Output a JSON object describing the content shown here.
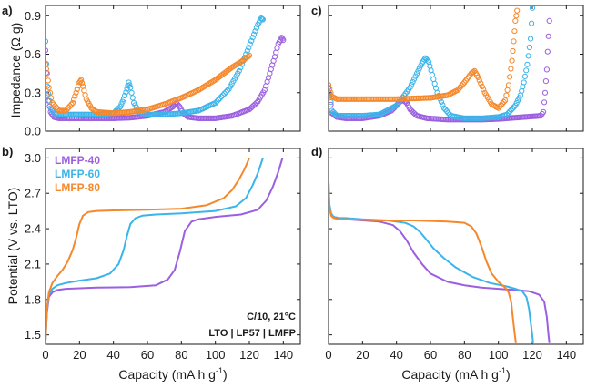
{
  "colors": {
    "purple": "#9b5fe0",
    "blue": "#3bb4ea",
    "orange": "#f5882a",
    "frame": "#1a1a1a",
    "text": "#1a1a1a"
  },
  "axis_labels": {
    "impedance": "Impedance (Ω g)",
    "potential": "Potential (V vs. LTO)",
    "capacity_left": "Capacity (mA h g",
    "capacity_right": "Capacity (mA h g",
    "superscript": "-1",
    "close": ")"
  },
  "annotations": {
    "conditions": "C/10, 21°C",
    "cell": "LTO | LP57 | LMFP"
  },
  "chart_data": [
    {
      "panel": "a)",
      "type": "scatter",
      "xlim": [
        0,
        150
      ],
      "ylim": [
        0,
        0.98
      ],
      "yticks": [
        0.0,
        0.3,
        0.6,
        0.9
      ],
      "ytick_labels": [
        "0.0",
        "0.3",
        "0.6",
        "0.9"
      ],
      "ylabel": "Impedance (Ω g)",
      "series": [
        {
          "name": "LMFP-40",
          "color_key": "purple",
          "x": [
            0,
            1,
            3,
            5,
            8,
            12,
            20,
            30,
            40,
            50,
            60,
            70,
            75,
            77,
            79,
            81,
            84,
            90,
            100,
            110,
            120,
            125,
            129,
            132,
            135,
            137,
            139,
            140
          ],
          "y": [
            0.63,
            0.28,
            0.15,
            0.11,
            0.1,
            0.1,
            0.1,
            0.1,
            0.1,
            0.105,
            0.12,
            0.15,
            0.19,
            0.22,
            0.19,
            0.14,
            0.11,
            0.1,
            0.1,
            0.12,
            0.17,
            0.23,
            0.32,
            0.45,
            0.58,
            0.68,
            0.73,
            0.71
          ]
        },
        {
          "name": "LMFP-60",
          "color_key": "blue",
          "x": [
            0,
            1,
            3,
            5,
            10,
            20,
            30,
            40,
            44,
            46,
            48,
            49,
            50,
            52,
            55,
            60,
            70,
            80,
            90,
            100,
            108,
            114,
            118,
            122,
            125,
            127,
            128
          ],
          "y": [
            0.7,
            0.35,
            0.18,
            0.14,
            0.13,
            0.13,
            0.13,
            0.14,
            0.19,
            0.25,
            0.33,
            0.38,
            0.34,
            0.22,
            0.15,
            0.13,
            0.13,
            0.14,
            0.16,
            0.22,
            0.33,
            0.47,
            0.6,
            0.73,
            0.83,
            0.88,
            0.87
          ]
        },
        {
          "name": "LMFP-80",
          "color_key": "orange",
          "x": [
            0,
            1,
            2,
            4,
            8,
            12,
            16,
            18,
            20,
            21,
            22,
            24,
            27,
            30,
            40,
            50,
            60,
            70,
            80,
            90,
            100,
            105,
            110,
            115,
            118,
            120
          ],
          "y": [
            0.52,
            0.45,
            0.34,
            0.22,
            0.16,
            0.16,
            0.22,
            0.3,
            0.38,
            0.4,
            0.35,
            0.25,
            0.18,
            0.15,
            0.14,
            0.15,
            0.17,
            0.21,
            0.26,
            0.32,
            0.4,
            0.45,
            0.5,
            0.54,
            0.57,
            0.59
          ]
        }
      ]
    },
    {
      "panel": "b)",
      "type": "line",
      "xlim": [
        0,
        150
      ],
      "ylim": [
        1.42,
        3.08
      ],
      "xticks": [
        0,
        20,
        40,
        60,
        80,
        100,
        120,
        140
      ],
      "xtick_labels": [
        "0",
        "20",
        "40",
        "60",
        "80",
        "100",
        "120",
        "140"
      ],
      "yticks": [
        1.5,
        1.8,
        2.1,
        2.4,
        2.7,
        3.0
      ],
      "ytick_labels": [
        "1.5",
        "1.8",
        "2.1",
        "2.4",
        "2.7",
        "3.0"
      ],
      "xlabel": "Capacity (mA h g-1)",
      "ylabel": "Potential (V vs. LTO)",
      "legend": [
        {
          "label": "LMFP-40",
          "color_key": "purple"
        },
        {
          "label": "LMFP-60",
          "color_key": "blue"
        },
        {
          "label": "LMFP-80",
          "color_key": "orange"
        }
      ],
      "series": [
        {
          "name": "LMFP-40",
          "color_key": "purple",
          "x": [
            0,
            0.8,
            2,
            4,
            7,
            12,
            30,
            50,
            65,
            72,
            76,
            79,
            82,
            86,
            90,
            100,
            115,
            125,
            130,
            134,
            137,
            139.5
          ],
          "y": [
            1.45,
            1.68,
            1.82,
            1.86,
            1.88,
            1.89,
            1.9,
            1.905,
            1.92,
            1.97,
            2.05,
            2.2,
            2.38,
            2.46,
            2.48,
            2.5,
            2.52,
            2.56,
            2.64,
            2.76,
            2.88,
            3.0
          ]
        },
        {
          "name": "LMFP-60",
          "color_key": "blue",
          "x": [
            0,
            0.8,
            2,
            4,
            7,
            12,
            20,
            30,
            38,
            43,
            46,
            48,
            50,
            53,
            57,
            65,
            80,
            100,
            112,
            118,
            122,
            125,
            128
          ],
          "y": [
            1.45,
            1.7,
            1.84,
            1.89,
            1.92,
            1.94,
            1.96,
            1.98,
            2.02,
            2.1,
            2.22,
            2.34,
            2.44,
            2.49,
            2.51,
            2.52,
            2.53,
            2.55,
            2.59,
            2.66,
            2.77,
            2.87,
            3.0
          ]
        },
        {
          "name": "LMFP-80",
          "color_key": "orange",
          "x": [
            0,
            0.8,
            2,
            4,
            7,
            10,
            13,
            16,
            18,
            20,
            22,
            25,
            30,
            40,
            60,
            80,
            95,
            105,
            110,
            114,
            117,
            120
          ],
          "y": [
            1.45,
            1.72,
            1.86,
            1.94,
            2.0,
            2.05,
            2.12,
            2.22,
            2.32,
            2.44,
            2.51,
            2.54,
            2.55,
            2.555,
            2.56,
            2.57,
            2.6,
            2.66,
            2.73,
            2.82,
            2.9,
            3.0
          ]
        }
      ]
    },
    {
      "panel": "c)",
      "type": "scatter",
      "xlim": [
        0,
        150
      ],
      "ylim": [
        0,
        0.98
      ],
      "series": [
        {
          "name": "LMFP-40",
          "color_key": "purple",
          "x": [
            0,
            2,
            5,
            10,
            20,
            30,
            37,
            40,
            42,
            44,
            46,
            48,
            52,
            58,
            70,
            80,
            90,
            100,
            105,
            110,
            115,
            120,
            125,
            126.5,
            127.5,
            128.5,
            129,
            130
          ],
          "y": [
            0.34,
            0.14,
            0.11,
            0.1,
            0.1,
            0.12,
            0.16,
            0.2,
            0.23,
            0.24,
            0.22,
            0.17,
            0.12,
            0.1,
            0.09,
            0.09,
            0.09,
            0.095,
            0.1,
            0.105,
            0.11,
            0.115,
            0.12,
            0.15,
            0.3,
            0.48,
            0.62,
            0.86
          ]
        },
        {
          "name": "LMFP-60",
          "color_key": "blue",
          "x": [
            0,
            2,
            5,
            10,
            20,
            30,
            40,
            48,
            52,
            55,
            57,
            59,
            61,
            64,
            68,
            72,
            80,
            90,
            100,
            105,
            110,
            113,
            115,
            117,
            119,
            120
          ],
          "y": [
            0.36,
            0.16,
            0.12,
            0.12,
            0.12,
            0.13,
            0.2,
            0.34,
            0.45,
            0.53,
            0.57,
            0.54,
            0.44,
            0.3,
            0.18,
            0.12,
            0.1,
            0.1,
            0.11,
            0.13,
            0.2,
            0.28,
            0.38,
            0.52,
            0.72,
            0.96
          ]
        },
        {
          "name": "LMFP-80",
          "color_key": "orange",
          "x": [
            0,
            2,
            5,
            10,
            20,
            40,
            60,
            70,
            76,
            80,
            84,
            86,
            88,
            92,
            96,
            100,
            104,
            106,
            108,
            109,
            110,
            111
          ],
          "y": [
            0.36,
            0.27,
            0.25,
            0.25,
            0.25,
            0.25,
            0.26,
            0.28,
            0.32,
            0.38,
            0.45,
            0.47,
            0.42,
            0.3,
            0.21,
            0.18,
            0.24,
            0.36,
            0.55,
            0.7,
            0.86,
            0.94
          ]
        }
      ]
    },
    {
      "panel": "d)",
      "type": "line",
      "xlim": [
        0,
        150
      ],
      "ylim": [
        1.42,
        3.08
      ],
      "xticks": [
        0,
        20,
        40,
        60,
        80,
        100,
        120,
        140
      ],
      "xtick_labels": [
        "0",
        "20",
        "40",
        "60",
        "80",
        "100",
        "120",
        "140"
      ],
      "xlabel": "Capacity (mA h g-1)",
      "series": [
        {
          "name": "LMFP-40",
          "color_key": "purple",
          "x": [
            0,
            0.5,
            1.5,
            3,
            6,
            10,
            20,
            30,
            38,
            42,
            46,
            50,
            55,
            60,
            70,
            80,
            90,
            100,
            110,
            118,
            124,
            127,
            128.5,
            129.5,
            130
          ],
          "y": [
            2.8,
            2.6,
            2.52,
            2.5,
            2.49,
            2.48,
            2.47,
            2.46,
            2.43,
            2.38,
            2.3,
            2.2,
            2.1,
            2.02,
            1.95,
            1.92,
            1.9,
            1.89,
            1.88,
            1.87,
            1.84,
            1.78,
            1.65,
            1.5,
            1.43
          ]
        },
        {
          "name": "LMFP-60",
          "color_key": "blue",
          "x": [
            0,
            0.5,
            1.5,
            3,
            6,
            10,
            20,
            35,
            45,
            50,
            54,
            58,
            62,
            68,
            75,
            85,
            95,
            105,
            110,
            114,
            116.5,
            118,
            119.5,
            120.5
          ],
          "y": [
            2.8,
            2.61,
            2.53,
            2.5,
            2.49,
            2.49,
            2.48,
            2.47,
            2.45,
            2.42,
            2.37,
            2.3,
            2.23,
            2.15,
            2.07,
            1.99,
            1.94,
            1.91,
            1.89,
            1.87,
            1.82,
            1.72,
            1.55,
            1.43
          ]
        },
        {
          "name": "LMFP-80",
          "color_key": "orange",
          "x": [
            0,
            0.5,
            1.5,
            3,
            6,
            10,
            30,
            50,
            70,
            80,
            84,
            87,
            90,
            93,
            96,
            100,
            104,
            106,
            107.5,
            108.5,
            109.5,
            110.3
          ],
          "y": [
            2.72,
            2.58,
            2.51,
            2.49,
            2.48,
            2.48,
            2.47,
            2.47,
            2.46,
            2.45,
            2.42,
            2.36,
            2.25,
            2.12,
            2.02,
            1.95,
            1.9,
            1.86,
            1.78,
            1.65,
            1.52,
            1.43
          ]
        }
      ]
    }
  ]
}
